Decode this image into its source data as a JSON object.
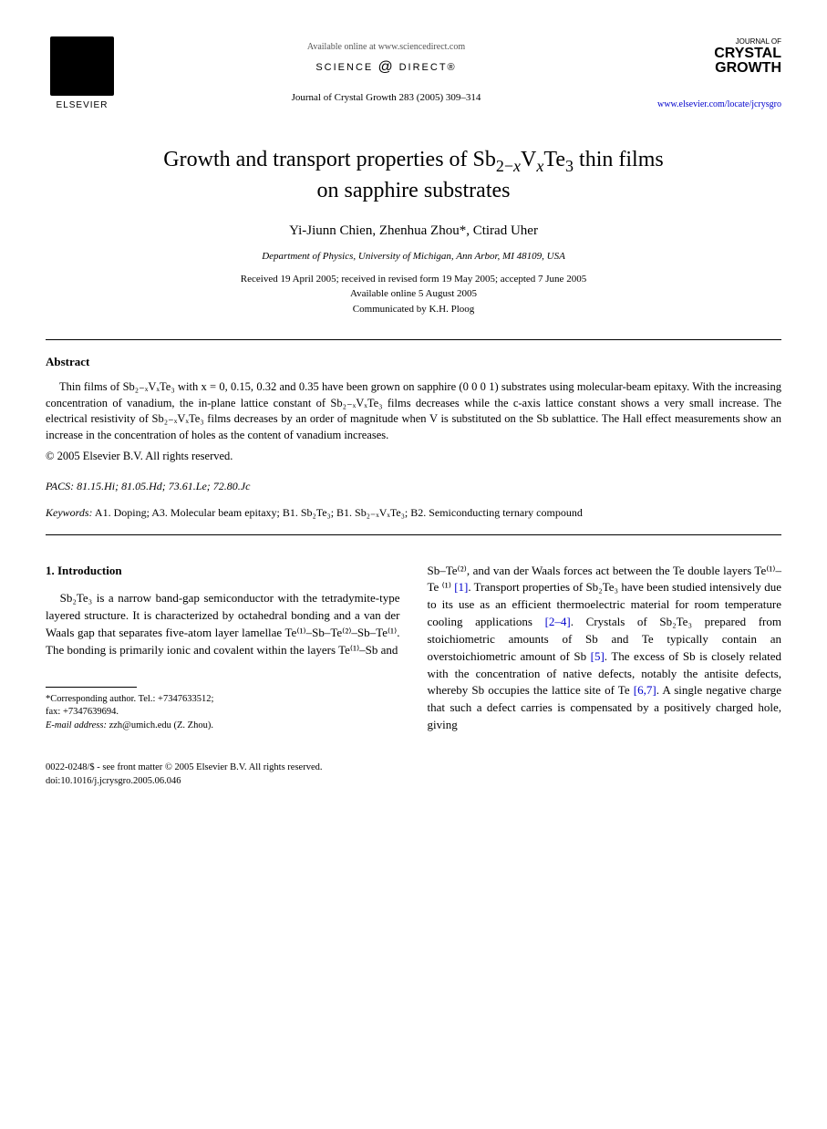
{
  "header": {
    "elsevier": "ELSEVIER",
    "available_online": "Available online at www.sciencedirect.com",
    "science": "SCIENCE",
    "direct": "DIRECT®",
    "journal_ref": "Journal of Crystal Growth 283 (2005) 309–314",
    "journal_of": "JOURNAL OF",
    "crystal": "CRYSTAL",
    "growth": "GROWTH",
    "url": "www.elsevier.com/locate/jcrysgro"
  },
  "title": {
    "line1_pre": "Growth and transport properties of Sb",
    "line1_sub1": "2−",
    "line1_x1": "x",
    "line1_mid": "V",
    "line1_x2": "x",
    "line1_post": "Te",
    "line1_sub3": "3",
    "line1_end": " thin films",
    "line2": "on sapphire substrates"
  },
  "authors": "Yi-Jiunn Chien, Zhenhua Zhou*, Ctirad Uher",
  "affiliation": "Department of Physics, University of Michigan, Ann Arbor, MI 48109, USA",
  "dates": {
    "received": "Received 19 April 2005; received in revised form 19 May 2005; accepted 7 June 2005",
    "available": "Available online 5 August 2005",
    "communicated": "Communicated by K.H. Ploog"
  },
  "abstract": {
    "heading": "Abstract",
    "text": "Thin films of Sb₂₋ₓVₓTe₃ with x = 0, 0.15, 0.32 and 0.35 have been grown on sapphire (0 0 0 1) substrates using molecular-beam epitaxy. With the increasing concentration of vanadium, the in-plane lattice constant of Sb₂₋ₓVₓTe₃ films decreases while the c-axis lattice constant shows a very small increase. The electrical resistivity of Sb₂₋ₓVₓTe₃ films decreases by an order of magnitude when V is substituted on the Sb sublattice. The Hall effect measurements show an increase in the concentration of holes as the content of vanadium increases.",
    "copyright": "© 2005 Elsevier B.V. All rights reserved."
  },
  "pacs": {
    "label": "PACS:",
    "values": " 81.15.Hi; 81.05.Hd; 73.61.Le; 72.80.Jc"
  },
  "keywords": {
    "label": "Keywords:",
    "values": " A1. Doping; A3. Molecular beam epitaxy; B1. Sb₂Te₃; B1. Sb₂₋ₓVₓTe₃; B2. Semiconducting ternary compound"
  },
  "intro": {
    "heading": "1. Introduction",
    "col1": "Sb₂Te₃ is a narrow band-gap semiconductor with the tetradymite-type layered structure. It is characterized by octahedral bonding and a van der Waals gap that separates five-atom layer lamellae Te⁽¹⁾–Sb–Te⁽²⁾–Sb–Te⁽¹⁾. The bonding is primarily ionic and covalent within the layers Te⁽¹⁾–Sb and",
    "col2_pre": "Sb–Te⁽²⁾, and van der Waals forces act between the Te double layers Te⁽¹⁾–Te ⁽¹⁾ ",
    "ref1": "[1]",
    "col2_mid1": ". Transport properties of Sb₂Te₃ have been studied intensively due to its use as an efficient thermoelectric material for room temperature cooling applications ",
    "ref2": "[2–4]",
    "col2_mid2": ". Crystals of Sb₂Te₃ prepared from stoichiometric amounts of Sb and Te typically contain an overstoichiometric amount of Sb ",
    "ref3": "[5]",
    "col2_mid3": ". The excess of Sb is closely related with the concentration of native defects, notably the antisite defects, whereby Sb occupies the lattice site of Te ",
    "ref4": "[6,7]",
    "col2_end": ". A single negative charge that such a defect carries is compensated by a positively charged hole, giving"
  },
  "footnote": {
    "corresponding": "*Corresponding author. Tel.: +7347633512;",
    "fax": "fax: +7347639694.",
    "email_label": "E-mail address:",
    "email": " zzh@umich.edu (Z. Zhou)."
  },
  "footer": {
    "line1": "0022-0248/$ - see front matter © 2005 Elsevier B.V. All rights reserved.",
    "line2": "doi:10.1016/j.jcrysgro.2005.06.046"
  }
}
